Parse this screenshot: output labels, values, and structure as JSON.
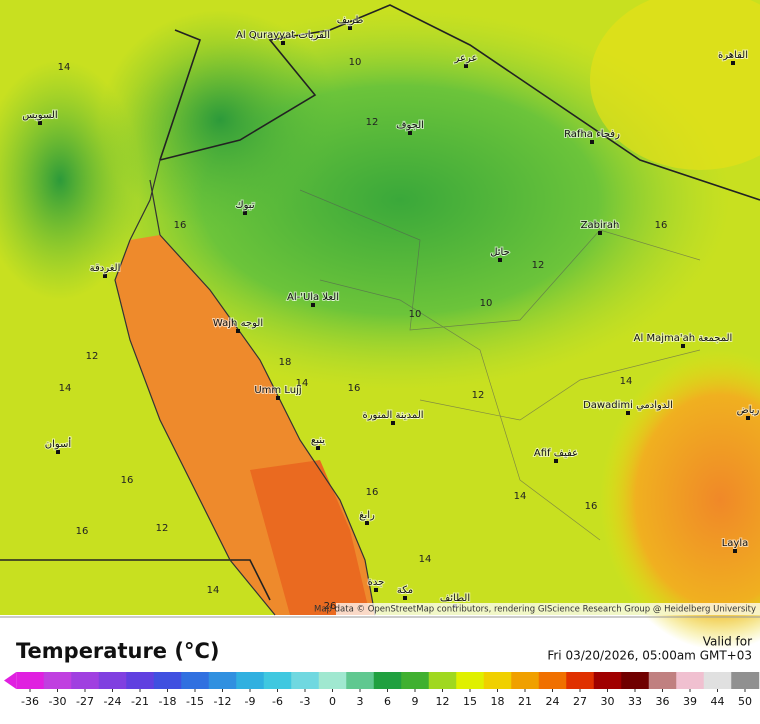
{
  "legend": {
    "title": "Temperature (°C)",
    "valid_label": "Valid for",
    "valid_time": "Fri 03/20/2026, 05:00am GMT+03",
    "ticks": [
      -36,
      -30,
      -27,
      -24,
      -21,
      -18,
      -15,
      -12,
      -9,
      -6,
      -3,
      0,
      3,
      6,
      9,
      12,
      15,
      18,
      21,
      24,
      27,
      30,
      33,
      36,
      39,
      44,
      50
    ],
    "colors": [
      "#e020e0",
      "#c040e0",
      "#a040e0",
      "#8040e0",
      "#6040e0",
      "#4050e0",
      "#3070e0",
      "#3090e0",
      "#30b0e0",
      "#40c8e0",
      "#70d8e0",
      "#a0e8d0",
      "#60c890",
      "#20a040",
      "#40b030",
      "#a0d820",
      "#e0f000",
      "#f0d000",
      "#f0a000",
      "#f07000",
      "#e03000",
      "#a00000",
      "#700000",
      "#c08080",
      "#f0c0d0",
      "#e0e0e0",
      "#909090"
    ]
  },
  "map": {
    "attribution": "Map data © OpenStreetMap contributors, rendering GIScience Research Group @ Heidelberg University",
    "places": [
      "Al Qurayyat القريات",
      "طريف",
      "عرعر",
      "الجوف",
      "Rafha رفحاء",
      "Zabirah",
      "حائل",
      "تبوك",
      "Al-'Ula العلا",
      "Wajh الوجه",
      "Umm Lujj",
      "المدينة المنورة",
      "ينبع",
      "Afif عفيف",
      "Dawadimi الدوادمي",
      "Al Majma'ah المجمعة",
      "Layla",
      "القاهرة",
      "السويس",
      "الغردقة",
      "أسوان",
      "رابغ",
      "جدة",
      "مكة",
      "الطائف",
      "رياض"
    ],
    "contour_labels": [
      10,
      12,
      14,
      16,
      12,
      10,
      10,
      18,
      14,
      16,
      12,
      14,
      16,
      12,
      14,
      16,
      16,
      12,
      14,
      16,
      16,
      14,
      14,
      26
    ]
  }
}
